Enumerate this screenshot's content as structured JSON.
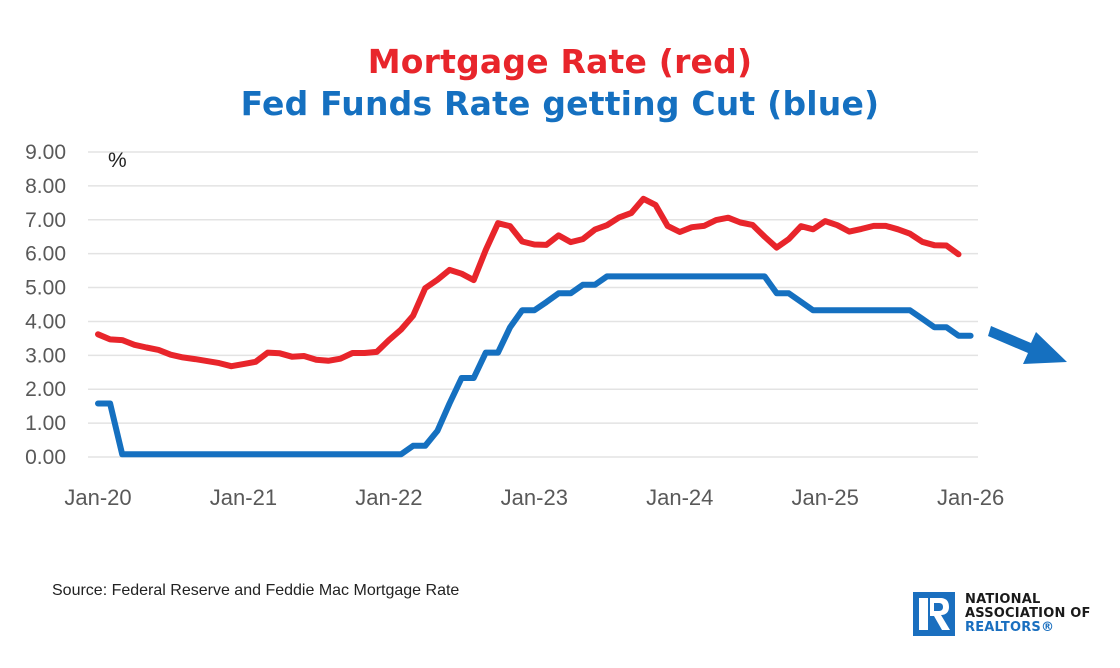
{
  "colors": {
    "mortgage": "#e8252b",
    "fed": "#1570c0",
    "grid": "#e3e3e3",
    "tick_text": "#595959",
    "logo_blue": "#1a6fbf"
  },
  "source_text": "Source: Federal Reserve and Feddie Mac Mortgage Rate",
  "logo": {
    "line1": "NATIONAL",
    "line2": "ASSOCIATION OF",
    "line3": "REALTORS®",
    "icon": "realtor-r-icon"
  },
  "annotation": {
    "icon": "down-right-arrow-icon",
    "meaning": "fed funds rate trending down"
  },
  "chart_data": {
    "type": "line",
    "title": "Mortgage Rate (red)",
    "subtitle": "Fed Funds Rate getting Cut (blue)",
    "xlabel": "",
    "ylabel": "%",
    "ylim": [
      0,
      9
    ],
    "yticks": [
      "0.00",
      "1.00",
      "2.00",
      "3.00",
      "4.00",
      "5.00",
      "6.00",
      "7.00",
      "8.00",
      "9.00"
    ],
    "xticks": [
      "Jan-20",
      "Jan-21",
      "Jan-22",
      "Jan-23",
      "Jan-24",
      "Jan-25",
      "Jan-26"
    ],
    "grid": true,
    "x_start": "Jan-20",
    "x_frequency": "monthly",
    "legend": "none (colors named in title)",
    "series": [
      {
        "name": "Mortgage Rate",
        "color": "red",
        "values": [
          3.62,
          3.47,
          3.45,
          3.31,
          3.23,
          3.16,
          3.02,
          2.94,
          2.89,
          2.83,
          2.77,
          2.68,
          2.74,
          2.81,
          3.08,
          3.06,
          2.96,
          2.98,
          2.87,
          2.84,
          2.9,
          3.07,
          3.07,
          3.1,
          3.45,
          3.76,
          4.17,
          4.98,
          5.23,
          5.52,
          5.41,
          5.22,
          6.11,
          6.9,
          6.81,
          6.36,
          6.27,
          6.26,
          6.54,
          6.34,
          6.43,
          6.71,
          6.84,
          7.07,
          7.2,
          7.62,
          7.44,
          6.82,
          6.64,
          6.78,
          6.82,
          6.99,
          7.06,
          6.92,
          6.85,
          6.5,
          6.18,
          6.43,
          6.81,
          6.72,
          6.96,
          6.84,
          6.65,
          6.73,
          6.82,
          6.82,
          6.72,
          6.59,
          6.35,
          6.25,
          6.24,
          5.98
        ]
      },
      {
        "name": "Fed Funds Rate",
        "color": "blue",
        "values": [
          1.58,
          1.58,
          0.08,
          0.08,
          0.08,
          0.08,
          0.08,
          0.08,
          0.08,
          0.08,
          0.08,
          0.08,
          0.08,
          0.08,
          0.08,
          0.08,
          0.08,
          0.08,
          0.08,
          0.08,
          0.08,
          0.08,
          0.08,
          0.08,
          0.08,
          0.08,
          0.33,
          0.33,
          0.77,
          1.58,
          2.33,
          2.33,
          3.08,
          3.08,
          3.83,
          4.33,
          4.33,
          4.57,
          4.83,
          4.83,
          5.08,
          5.08,
          5.33,
          5.33,
          5.33,
          5.33,
          5.33,
          5.33,
          5.33,
          5.33,
          5.33,
          5.33,
          5.33,
          5.33,
          5.33,
          5.33,
          4.83,
          4.83,
          4.58,
          4.33,
          4.33,
          4.33,
          4.33,
          4.33,
          4.33,
          4.33,
          4.33,
          4.33,
          4.08,
          3.83,
          3.83,
          3.58,
          3.58
        ]
      }
    ]
  }
}
